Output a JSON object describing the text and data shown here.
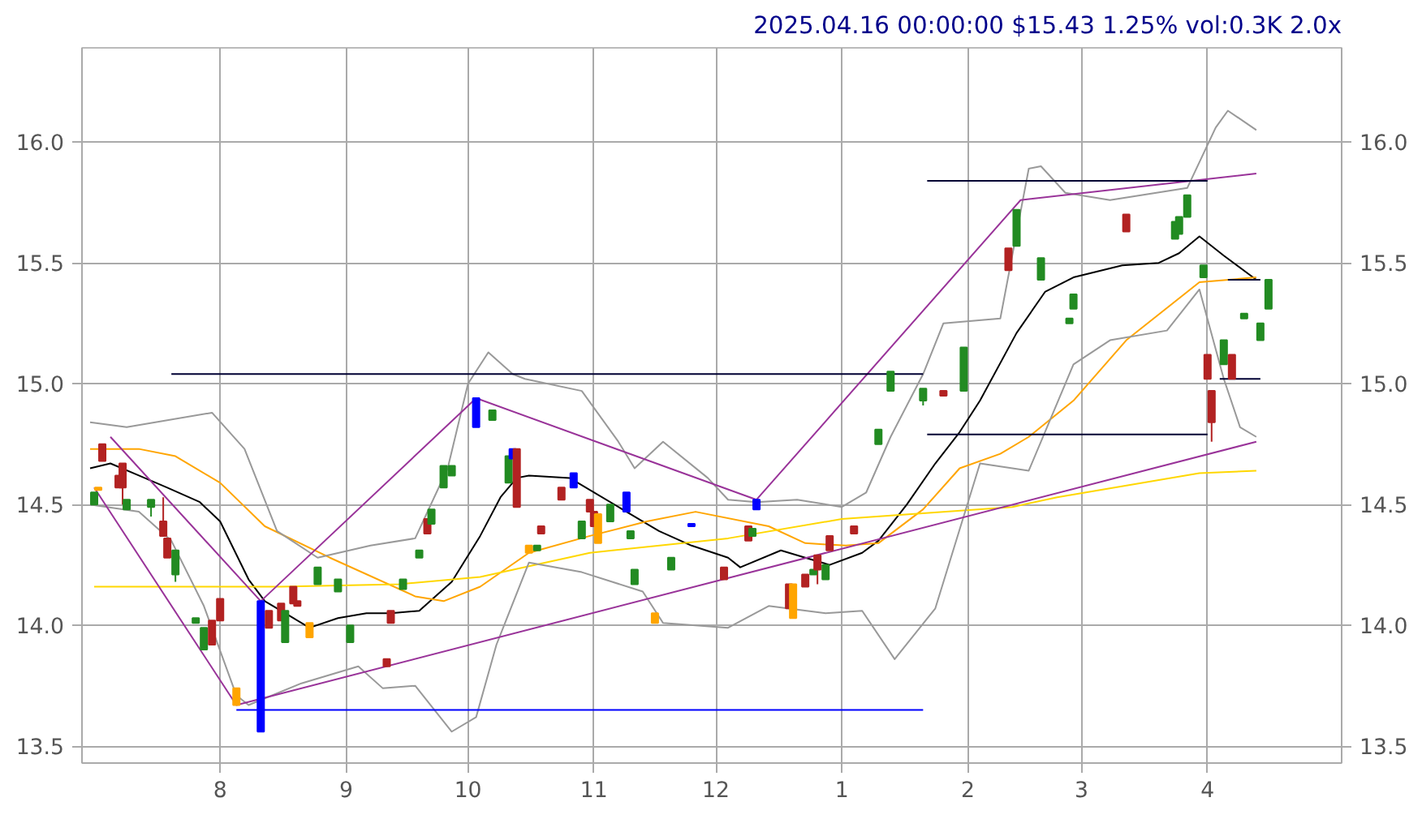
{
  "chart_data": {
    "type": "candlestick",
    "title": "2025.04.16 00:00:00 $15.43 1.25% vol:0.3K 2.0x",
    "x": [
      "2024-07-01",
      "2024-07-02",
      "2024-07-03",
      "2024-07-07",
      "2024-07-08",
      "2024-07-09",
      "2024-07-15",
      "2024-07-18",
      "2024-07-19",
      "2024-07-21",
      "2024-07-26",
      "2024-07-28",
      "2024-07-30",
      "2024-08-01",
      "2024-08-05",
      "2024-08-11",
      "2024-08-13",
      "2024-08-16",
      "2024-08-17",
      "2024-08-19",
      "2024-08-20",
      "2024-08-23",
      "2024-08-25",
      "2024-08-30",
      "2024-09-02",
      "2024-09-11",
      "2024-09-12",
      "2024-09-15",
      "2024-09-19",
      "2024-09-21",
      "2024-09-22",
      "2024-09-25",
      "2024-09-27",
      "2024-10-03",
      "2024-10-07",
      "2024-10-11",
      "2024-10-12",
      "2024-10-13",
      "2024-10-16",
      "2024-10-18",
      "2024-10-19",
      "2024-10-24",
      "2024-10-27",
      "2024-10-29",
      "2024-10-31",
      "2024-11-01",
      "2024-11-02",
      "2024-11-05",
      "2024-11-09",
      "2024-11-10",
      "2024-11-11",
      "2024-11-16",
      "2024-11-20",
      "2024-11-25",
      "2024-12-03",
      "2024-12-09",
      "2024-12-10",
      "2024-12-11",
      "2024-12-19",
      "2024-12-20",
      "2024-12-23",
      "2024-12-25",
      "2024-12-26",
      "2024-12-28",
      "2024-12-29",
      "2025-01-04",
      "2025-01-10",
      "2025-01-13",
      "2025-01-21",
      "2025-01-26",
      "2025-01-31",
      "2025-02-11",
      "2025-02-13",
      "2025-02-19",
      "2025-02-26",
      "2025-02-27",
      "2025-03-12",
      "2025-03-24",
      "2025-03-25",
      "2025-03-27",
      "2025-03-31",
      "2025-04-01",
      "2025-04-02",
      "2025-04-05",
      "2025-04-07",
      "2025-04-10",
      "2025-04-14",
      "2025-04-16"
    ],
    "ohlc": [
      [
        14.5,
        14.55,
        14.5,
        14.55
      ],
      [
        14.56,
        14.57,
        14.56,
        14.57
      ],
      [
        14.75,
        14.75,
        14.68,
        14.68
      ],
      [
        14.62,
        14.62,
        14.57,
        14.57
      ],
      [
        14.67,
        14.67,
        14.5,
        14.57
      ],
      [
        14.48,
        14.52,
        14.48,
        14.52
      ],
      [
        14.49,
        14.52,
        14.45,
        14.52
      ],
      [
        14.43,
        14.53,
        14.37,
        14.37
      ],
      [
        14.36,
        14.36,
        14.28,
        14.28
      ],
      [
        14.21,
        14.31,
        14.18,
        14.31
      ],
      [
        14.01,
        14.03,
        14.01,
        14.03
      ],
      [
        13.9,
        13.99,
        13.9,
        13.99
      ],
      [
        14.02,
        14.02,
        13.92,
        13.92
      ],
      [
        14.11,
        14.11,
        14.02,
        14.02
      ],
      [
        13.67,
        13.74,
        13.67,
        13.74
      ],
      [
        14.1,
        14.1,
        13.56,
        13.56
      ],
      [
        14.06,
        14.06,
        13.99,
        13.99
      ],
      [
        14.09,
        14.09,
        14.02,
        14.02
      ],
      [
        13.93,
        14.06,
        13.93,
        14.06
      ],
      [
        14.16,
        14.16,
        14.09,
        14.09
      ],
      [
        14.1,
        14.1,
        14.08,
        14.08
      ],
      [
        13.95,
        14.01,
        13.95,
        14.01
      ],
      [
        14.17,
        14.24,
        14.17,
        14.24
      ],
      [
        14.14,
        14.19,
        14.14,
        14.19
      ],
      [
        13.93,
        14.0,
        13.93,
        14.0
      ],
      [
        13.86,
        13.86,
        13.83,
        13.83
      ],
      [
        14.06,
        14.06,
        14.01,
        14.01
      ],
      [
        14.15,
        14.19,
        14.15,
        14.19
      ],
      [
        14.28,
        14.31,
        14.28,
        14.31
      ],
      [
        14.44,
        14.44,
        14.38,
        14.38
      ],
      [
        14.42,
        14.48,
        14.42,
        14.48
      ],
      [
        14.57,
        14.66,
        14.57,
        14.66
      ],
      [
        14.62,
        14.66,
        14.62,
        14.66
      ],
      [
        14.82,
        14.94,
        14.82,
        14.94
      ],
      [
        14.85,
        14.89,
        14.85,
        14.89
      ],
      [
        14.59,
        14.7,
        14.59,
        14.7
      ],
      [
        14.69,
        14.73,
        14.69,
        14.73
      ],
      [
        14.73,
        14.73,
        14.49,
        14.49
      ],
      [
        14.3,
        14.33,
        14.3,
        14.33
      ],
      [
        14.31,
        14.33,
        14.31,
        14.33
      ],
      [
        14.41,
        14.41,
        14.38,
        14.38
      ],
      [
        14.57,
        14.57,
        14.52,
        14.52
      ],
      [
        14.57,
        14.63,
        14.57,
        14.63
      ],
      [
        14.36,
        14.43,
        14.36,
        14.43
      ],
      [
        14.52,
        14.52,
        14.47,
        14.47
      ],
      [
        14.47,
        14.47,
        14.41,
        14.41
      ],
      [
        14.34,
        14.46,
        14.34,
        14.46
      ],
      [
        14.43,
        14.5,
        14.43,
        14.5
      ],
      [
        14.47,
        14.55,
        14.47,
        14.55
      ],
      [
        14.36,
        14.39,
        14.36,
        14.39
      ],
      [
        14.17,
        14.23,
        14.17,
        14.23
      ],
      [
        14.01,
        14.05,
        14.01,
        14.05
      ],
      [
        14.23,
        14.28,
        14.23,
        14.28
      ],
      [
        14.41,
        14.42,
        14.41,
        14.42
      ],
      [
        14.24,
        14.24,
        14.19,
        14.19
      ],
      [
        14.41,
        14.41,
        14.35,
        14.35
      ],
      [
        14.37,
        14.4,
        14.37,
        14.4
      ],
      [
        14.48,
        14.52,
        14.48,
        14.52
      ],
      [
        14.17,
        14.17,
        14.07,
        14.07
      ],
      [
        14.03,
        14.17,
        14.03,
        14.17
      ],
      [
        14.21,
        14.21,
        14.16,
        14.16
      ],
      [
        14.21,
        14.23,
        14.21,
        14.23
      ],
      [
        14.29,
        14.29,
        14.17,
        14.23
      ],
      [
        14.19,
        14.25,
        14.19,
        14.25
      ],
      [
        14.37,
        14.37,
        14.31,
        14.31
      ],
      [
        14.41,
        14.41,
        14.38,
        14.38
      ],
      [
        14.75,
        14.81,
        14.75,
        14.81
      ],
      [
        14.97,
        15.05,
        14.97,
        15.05
      ],
      [
        14.93,
        14.98,
        14.91,
        14.98
      ],
      [
        14.97,
        14.97,
        14.95,
        14.95
      ],
      [
        14.97,
        15.15,
        14.97,
        15.15
      ],
      [
        15.56,
        15.56,
        15.47,
        15.47
      ],
      [
        15.57,
        15.72,
        15.57,
        15.72
      ],
      [
        15.43,
        15.52,
        15.43,
        15.52
      ],
      [
        15.25,
        15.27,
        15.25,
        15.27
      ],
      [
        15.31,
        15.37,
        15.31,
        15.37
      ],
      [
        15.7,
        15.7,
        15.63,
        15.63
      ],
      [
        15.6,
        15.67,
        15.6,
        15.67
      ],
      [
        15.62,
        15.69,
        15.62,
        15.69
      ],
      [
        15.69,
        15.78,
        15.69,
        15.78
      ],
      [
        15.44,
        15.49,
        15.44,
        15.49
      ],
      [
        15.12,
        15.12,
        15.02,
        15.02
      ],
      [
        14.97,
        14.97,
        14.76,
        14.84
      ],
      [
        15.08,
        15.18,
        15.08,
        15.18
      ],
      [
        15.12,
        15.12,
        15.02,
        15.02
      ],
      [
        15.27,
        15.29,
        15.27,
        15.29
      ],
      [
        15.18,
        15.25,
        15.18,
        15.25
      ],
      [
        15.31,
        15.43,
        15.31,
        15.43
      ]
    ],
    "colors": [
      "#228b22",
      "#ffa500",
      "#b22222",
      "#b22222",
      "#b22222",
      "#228b22",
      "#228b22",
      "#b22222",
      "#b22222",
      "#228b22",
      "#228b22",
      "#228b22",
      "#b22222",
      "#b22222",
      "#ffa500",
      "#0000ff",
      "#b22222",
      "#b22222",
      "#228b22",
      "#b22222",
      "#b22222",
      "#ffa500",
      "#228b22",
      "#228b22",
      "#228b22",
      "#b22222",
      "#b22222",
      "#228b22",
      "#228b22",
      "#b22222",
      "#228b22",
      "#228b22",
      "#228b22",
      "#0000ff",
      "#228b22",
      "#228b22",
      "#0000ff",
      "#b22222",
      "#ffa500",
      "#228b22",
      "#b22222",
      "#b22222",
      "#0000ff",
      "#228b22",
      "#b22222",
      "#b22222",
      "#ffa500",
      "#228b22",
      "#0000ff",
      "#228b22",
      "#228b22",
      "#ffa500",
      "#228b22",
      "#0000ff",
      "#b22222",
      "#b22222",
      "#228b22",
      "#0000ff",
      "#b22222",
      "#ffa500",
      "#b22222",
      "#228b22",
      "#b22222",
      "#228b22",
      "#b22222",
      "#b22222",
      "#228b22",
      "#228b22",
      "#228b22",
      "#b22222",
      "#228b22",
      "#b22222",
      "#228b22",
      "#228b22",
      "#228b22",
      "#228b22",
      "#b22222",
      "#228b22",
      "#228b22",
      "#228b22",
      "#228b22",
      "#b22222",
      "#b22222",
      "#228b22",
      "#b22222",
      "#228b22",
      "#228b22",
      "#228b22"
    ],
    "series": [
      {
        "type": "line",
        "color": "#000000",
        "x": [
          "2024-06-30",
          "2024-07-05",
          "2024-07-12",
          "2024-07-19",
          "2024-07-27",
          "2024-08-01",
          "2024-08-08",
          "2024-08-12",
          "2024-08-19",
          "2024-08-23",
          "2024-08-30",
          "2024-09-06",
          "2024-09-12",
          "2024-09-19",
          "2024-09-27",
          "2024-10-04",
          "2024-10-09",
          "2024-10-13",
          "2024-10-16",
          "2024-10-26",
          "2024-11-09",
          "2024-11-17",
          "2024-11-25",
          "2024-12-04",
          "2024-12-07",
          "2024-12-17",
          "2024-12-23",
          "2024-12-29",
          "2025-01-06",
          "2025-01-10",
          "2025-01-17",
          "2025-01-24",
          "2025-01-30",
          "2025-02-04",
          "2025-02-13",
          "2025-02-20",
          "2025-02-27",
          "2025-03-11",
          "2025-03-20",
          "2025-03-25",
          "2025-03-30",
          "2025-04-05",
          "2025-04-13"
        ],
        "values": [
          14.65,
          14.67,
          14.62,
          14.57,
          14.51,
          14.43,
          14.19,
          14.1,
          14.03,
          13.99,
          14.03,
          14.05,
          14.05,
          14.06,
          14.18,
          14.37,
          14.53,
          14.61,
          14.62,
          14.61,
          14.47,
          14.39,
          14.33,
          14.28,
          14.24,
          14.31,
          14.28,
          14.25,
          14.3,
          14.35,
          14.5,
          14.67,
          14.8,
          14.93,
          15.21,
          15.38,
          15.44,
          15.49,
          15.5,
          15.54,
          15.61,
          15.53,
          15.43
        ]
      },
      {
        "type": "line",
        "color": "#ffa500",
        "x": [
          "2024-06-30",
          "2024-07-12",
          "2024-07-21",
          "2024-08-01",
          "2024-08-12",
          "2024-08-28",
          "2024-09-18",
          "2024-09-25",
          "2024-10-04",
          "2024-10-16",
          "2024-10-31",
          "2024-11-14",
          "2024-11-26",
          "2024-12-14",
          "2024-12-23",
          "2025-01-02",
          "2025-01-10",
          "2025-01-21",
          "2025-01-30",
          "2025-02-09",
          "2025-02-16",
          "2025-02-27",
          "2025-03-12",
          "2025-03-30",
          "2025-04-13"
        ],
        "values": [
          14.73,
          14.73,
          14.7,
          14.59,
          14.41,
          14.28,
          14.12,
          14.1,
          14.16,
          14.3,
          14.37,
          14.43,
          14.47,
          14.41,
          14.34,
          14.33,
          14.34,
          14.48,
          14.65,
          14.71,
          14.78,
          14.93,
          15.18,
          15.42,
          15.44
        ]
      },
      {
        "type": "line",
        "color": "#ffd700",
        "x": [
          "2024-07-01",
          "2024-08-16",
          "2024-09-14",
          "2024-10-04",
          "2024-10-31",
          "2024-12-04",
          "2025-01-01",
          "2025-02-12",
          "2025-02-23",
          "2025-03-30",
          "2025-04-13"
        ],
        "values": [
          14.16,
          14.16,
          14.17,
          14.2,
          14.3,
          14.36,
          14.44,
          14.49,
          14.53,
          14.63,
          14.64
        ]
      },
      {
        "type": "line",
        "color": "#999999",
        "x": [
          "2024-06-30",
          "2024-07-09",
          "2024-07-30",
          "2024-08-07",
          "2024-08-15",
          "2024-08-25",
          "2024-09-07",
          "2024-09-18",
          "2024-09-26",
          "2024-10-01",
          "2024-10-06",
          "2024-10-12",
          "2024-10-15",
          "2024-10-29",
          "2024-11-07",
          "2024-11-11",
          "2024-11-18",
          "2024-11-29",
          "2024-12-04",
          "2024-12-11",
          "2024-12-21",
          "2025-01-01",
          "2025-01-07",
          "2025-01-13",
          "2025-01-21",
          "2025-01-26",
          "2025-02-09",
          "2025-02-16",
          "2025-02-19",
          "2025-02-25",
          "2025-03-08",
          "2025-03-27",
          "2025-04-03",
          "2025-04-06",
          "2025-04-13"
        ],
        "values": [
          14.84,
          14.82,
          14.88,
          14.73,
          14.39,
          14.28,
          14.33,
          14.36,
          14.65,
          15.0,
          15.13,
          15.04,
          15.02,
          14.97,
          14.76,
          14.65,
          14.76,
          14.61,
          14.52,
          14.51,
          14.52,
          14.49,
          14.55,
          14.78,
          15.04,
          15.25,
          15.27,
          15.89,
          15.9,
          15.79,
          15.76,
          15.81,
          16.06,
          16.13,
          16.05
        ]
      },
      {
        "type": "line",
        "color": "#999999",
        "x": [
          "2024-06-30",
          "2024-07-12",
          "2024-07-20",
          "2024-07-28",
          "2024-08-05",
          "2024-08-08",
          "2024-08-21",
          "2024-09-04",
          "2024-09-10",
          "2024-09-18",
          "2024-09-27",
          "2024-10-03",
          "2024-10-08",
          "2024-10-16",
          "2024-10-29",
          "2024-11-13",
          "2024-11-18",
          "2024-12-04",
          "2024-12-14",
          "2024-12-28",
          "2025-01-06",
          "2025-01-14",
          "2025-01-24",
          "2025-02-04",
          "2025-02-16",
          "2025-02-27",
          "2025-03-08",
          "2025-03-22",
          "2025-03-30",
          "2025-04-05",
          "2025-04-09",
          "2025-04-13"
        ],
        "values": [
          14.5,
          14.47,
          14.35,
          14.08,
          13.71,
          13.67,
          13.76,
          13.83,
          13.74,
          13.75,
          13.56,
          13.62,
          13.92,
          14.26,
          14.22,
          14.14,
          14.01,
          13.99,
          14.08,
          14.05,
          14.06,
          13.86,
          14.07,
          14.67,
          14.64,
          15.08,
          15.18,
          15.22,
          15.39,
          15.02,
          14.82,
          14.78
        ]
      },
      {
        "type": "line",
        "color": "#993399",
        "x": [
          "2024-07-05",
          "2024-08-11",
          "2024-10-03",
          "2024-12-11",
          "2025-02-14",
          "2025-04-13"
        ],
        "values": [
          14.78,
          14.1,
          14.94,
          14.52,
          15.76,
          15.87
        ]
      },
      {
        "type": "line",
        "color": "#993399",
        "x": [
          "2024-07-01",
          "2024-08-05",
          "2025-04-13"
        ],
        "values": [
          14.57,
          13.67,
          14.76
        ]
      },
      {
        "type": "line",
        "color": "#0000ff",
        "x": [
          "2024-08-05",
          "2025-01-21"
        ],
        "values": [
          13.65,
          13.65
        ]
      },
      {
        "type": "line",
        "color": "#000033",
        "x": [
          "2024-07-20",
          "2025-01-21"
        ],
        "values": [
          15.04,
          15.04
        ]
      },
      {
        "type": "line",
        "color": "#000033",
        "x": [
          "2025-01-22",
          "2025-04-01"
        ],
        "values": [
          15.84,
          15.84
        ]
      },
      {
        "type": "line",
        "color": "#000033",
        "x": [
          "2025-01-22",
          "2025-04-01"
        ],
        "values": [
          14.79,
          14.79
        ]
      },
      {
        "type": "line",
        "color": "#000033",
        "x": [
          "2025-04-06",
          "2025-04-14"
        ],
        "values": [
          15.43,
          15.43
        ]
      },
      {
        "type": "line",
        "color": "#000033",
        "x": [
          "2025-04-04",
          "2025-04-14"
        ],
        "values": [
          15.02,
          15.02
        ]
      }
    ],
    "xlim": [
      "2024-06-28",
      "2025-05-04"
    ],
    "xticks": [
      {
        "value": "2024-08-01",
        "label": "8"
      },
      {
        "value": "2024-09-01",
        "label": "9"
      },
      {
        "value": "2024-10-01",
        "label": "10"
      },
      {
        "value": "2024-11-01",
        "label": "11"
      },
      {
        "value": "2024-12-01",
        "label": "12"
      },
      {
        "value": "2025-01-01",
        "label": "1"
      },
      {
        "value": "2025-02-01",
        "label": "2"
      },
      {
        "value": "2025-03-01",
        "label": "3"
      },
      {
        "value": "2025-04-01",
        "label": "4"
      }
    ],
    "ylim": [
      13.43,
      16.39
    ],
    "yticks": [
      {
        "value": 13.5,
        "label": "13.5"
      },
      {
        "value": 14,
        "label": "14.0"
      },
      {
        "value": 14.5,
        "label": "14.5"
      },
      {
        "value": 15,
        "label": "15.0"
      },
      {
        "value": 15.5,
        "label": "15.5"
      },
      {
        "value": 16,
        "label": "16.0"
      }
    ],
    "y2lim": [
      13.43,
      16.39
    ],
    "y2ticks": [
      {
        "value": 13.5,
        "label": "13.5"
      },
      {
        "value": 14,
        "label": "14.0"
      },
      {
        "value": 14.5,
        "label": "14.5"
      },
      {
        "value": 15,
        "label": "15.0"
      },
      {
        "value": 15.5,
        "label": "15.5"
      },
      {
        "value": 16,
        "label": "16.0"
      }
    ],
    "grid": true
  }
}
